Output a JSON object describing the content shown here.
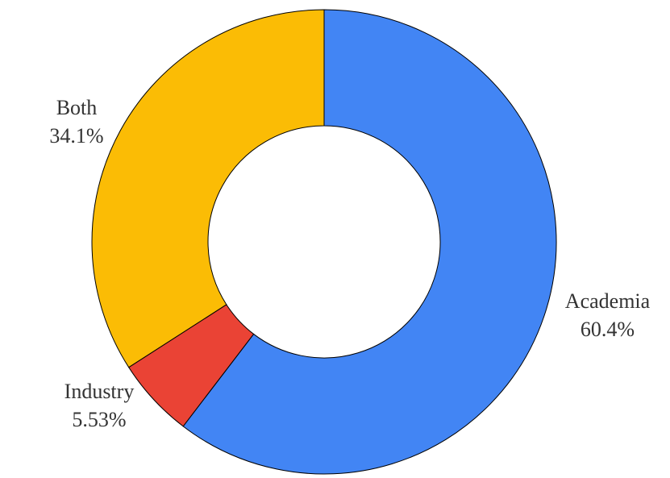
{
  "chart_data": {
    "type": "pie",
    "subtype": "donut",
    "title": "",
    "labels": [
      "Academia",
      "Industry",
      "Both"
    ],
    "values": [
      60.4,
      5.53,
      34.1
    ],
    "value_labels": [
      "60.4%",
      "5.53%",
      "34.1%"
    ],
    "colors": [
      "#4285F4",
      "#EA4335",
      "#FBBC05"
    ],
    "stroke_color": "#000000",
    "background": "#FFFFFF",
    "start_angle_deg": 0,
    "direction": "clockwise",
    "inner_radius_ratio": 0.5,
    "legend": "none",
    "label_placement": "outside"
  }
}
